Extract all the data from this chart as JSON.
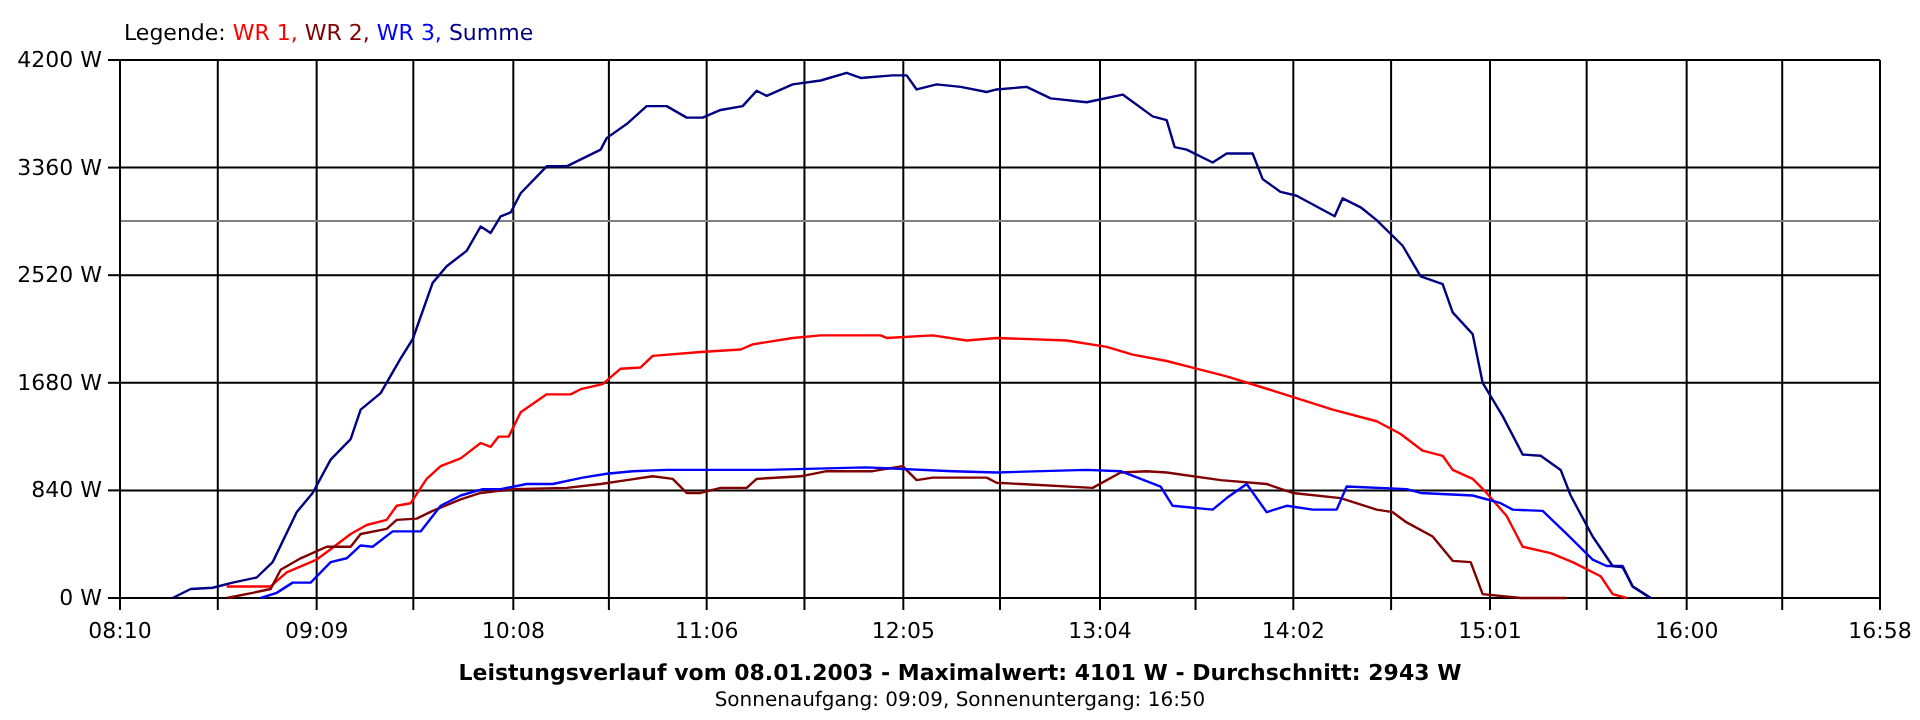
{
  "chart_data": {
    "type": "line",
    "title": "Leistungsverlauf vom 08.01.2003 - Maximalwert: 4101 W - Durchschnitt: 2943 W",
    "subtitle": "Sonnenaufgang: 09:09, Sonnenuntergang: 16:50",
    "legend_title": "Legende:",
    "legend": "top left",
    "grid": true,
    "xlim": [
      8.1667,
      16.9667
    ],
    "xticks": [
      {
        "value": 8.1667,
        "label": "08:10"
      },
      {
        "value": 8.6556,
        "label": null
      },
      {
        "value": 9.15,
        "label": "09:09"
      },
      {
        "value": 9.6333,
        "label": null
      },
      {
        "value": 10.1333,
        "label": "10:08"
      },
      {
        "value": 10.6111,
        "label": null
      },
      {
        "value": 11.1,
        "label": "11:06"
      },
      {
        "value": 11.5889,
        "label": null
      },
      {
        "value": 12.0833,
        "label": "12:05"
      },
      {
        "value": 12.5667,
        "label": null
      },
      {
        "value": 13.0667,
        "label": "13:04"
      },
      {
        "value": 13.5444,
        "label": null
      },
      {
        "value": 14.0333,
        "label": "14:02"
      },
      {
        "value": 14.5222,
        "label": null
      },
      {
        "value": 15.0167,
        "label": "15:01"
      },
      {
        "value": 15.5,
        "label": null
      },
      {
        "value": 16,
        "label": "16:00"
      },
      {
        "value": 16.4778,
        "label": null
      },
      {
        "value": 16.9667,
        "label": "16:58"
      }
    ],
    "ylim": [
      0,
      4200
    ],
    "yticks": [
      {
        "value": 0,
        "label": "0 W"
      },
      {
        "value": 840,
        "label": "840 W"
      },
      {
        "value": 1680,
        "label": "1680 W"
      },
      {
        "value": 2520,
        "label": "2520 W"
      },
      {
        "value": 3360,
        "label": "3360 W"
      },
      {
        "value": 4200,
        "label": "4200 W"
      }
    ],
    "ref_lines": [
      {
        "axis": "y",
        "value": 2943,
        "color": "#808080"
      }
    ],
    "series": [
      {
        "name": "WR 1,",
        "color": "#ff0000",
        "x": [
          8.7,
          8.92,
          9.0,
          9.15,
          9.22,
          9.32,
          9.4,
          9.5,
          9.55,
          9.62,
          9.7,
          9.77,
          9.87,
          9.97,
          10.02,
          10.06,
          10.11,
          10.17,
          10.3,
          10.42,
          10.47,
          10.58,
          10.67,
          10.77,
          10.83,
          11.07,
          11.27,
          11.33,
          11.53,
          11.67,
          11.97,
          12.0,
          12.23,
          12.4,
          12.55,
          12.9,
          13.1,
          13.23,
          13.4,
          13.5,
          13.7,
          13.97,
          14.23,
          14.45,
          14.57,
          14.68,
          14.78,
          14.83,
          14.93,
          15.0,
          15.1,
          15.18,
          15.32,
          15.43,
          15.57,
          15.63,
          15.7
        ],
        "values": [
          90,
          90,
          200,
          300,
          380,
          500,
          570,
          610,
          720,
          740,
          930,
          1030,
          1090,
          1210,
          1180,
          1260,
          1260,
          1450,
          1590,
          1590,
          1630,
          1670,
          1790,
          1800,
          1890,
          1920,
          1940,
          1980,
          2030,
          2050,
          2050,
          2030,
          2050,
          2010,
          2030,
          2010,
          1960,
          1900,
          1850,
          1810,
          1730,
          1600,
          1470,
          1380,
          1280,
          1150,
          1110,
          1000,
          930,
          820,
          640,
          400,
          350,
          280,
          170,
          30,
          0
        ]
      },
      {
        "name": "WR 2,",
        "color": "#800000",
        "x": [
          8.7,
          8.83,
          8.92,
          8.97,
          9.07,
          9.2,
          9.32,
          9.37,
          9.5,
          9.55,
          9.65,
          9.73,
          9.87,
          9.97,
          10.13,
          10.4,
          10.57,
          10.7,
          10.83,
          10.93,
          11.0,
          11.07,
          11.17,
          11.3,
          11.35,
          11.57,
          11.7,
          11.93,
          12.08,
          12.15,
          12.23,
          12.5,
          12.55,
          13.03,
          13.17,
          13.3,
          13.4,
          13.67,
          13.9,
          14.03,
          14.27,
          14.45,
          14.53,
          14.6,
          14.73,
          14.83,
          14.92,
          14.98,
          15.17,
          15.4
        ],
        "values": [
          0,
          40,
          70,
          220,
          310,
          400,
          400,
          500,
          540,
          610,
          620,
          680,
          770,
          820,
          850,
          860,
          890,
          920,
          950,
          930,
          820,
          820,
          860,
          860,
          930,
          950,
          990,
          990,
          1030,
          920,
          940,
          940,
          900,
          860,
          980,
          990,
          980,
          920,
          890,
          820,
          780,
          690,
          670,
          590,
          480,
          290,
          280,
          30,
          0,
          0
        ]
      },
      {
        "name": "WR 3,",
        "color": "#0000ff",
        "x": [
          8.87,
          8.95,
          9.03,
          9.12,
          9.22,
          9.3,
          9.37,
          9.43,
          9.53,
          9.67,
          9.77,
          9.87,
          9.98,
          10.07,
          10.2,
          10.33,
          10.48,
          10.6,
          10.73,
          10.9,
          11.4,
          11.9,
          12.33,
          12.55,
          13.0,
          13.17,
          13.37,
          13.43,
          13.63,
          13.7,
          13.8,
          13.9,
          14.0,
          14.13,
          14.25,
          14.3,
          14.6,
          14.67,
          14.93,
          15.07,
          15.13,
          15.28,
          15.4,
          15.53,
          15.6,
          15.68,
          15.73,
          15.82
        ],
        "values": [
          0,
          40,
          120,
          120,
          280,
          310,
          410,
          400,
          520,
          520,
          720,
          800,
          850,
          850,
          890,
          890,
          940,
          970,
          990,
          1000,
          1000,
          1020,
          990,
          980,
          1000,
          990,
          870,
          720,
          690,
          780,
          890,
          670,
          720,
          690,
          690,
          870,
          850,
          820,
          800,
          740,
          690,
          680,
          500,
          300,
          250,
          250,
          90,
          0
        ]
      },
      {
        "name": "Summe",
        "color": "#000080",
        "x": [
          8.43,
          8.52,
          8.63,
          8.73,
          8.85,
          8.93,
          9.05,
          9.13,
          9.22,
          9.32,
          9.37,
          9.47,
          9.57,
          9.63,
          9.73,
          9.8,
          9.9,
          9.97,
          10.02,
          10.07,
          10.12,
          10.17,
          10.3,
          10.4,
          10.57,
          10.6,
          10.7,
          10.8,
          10.9,
          11.0,
          11.08,
          11.17,
          11.28,
          11.35,
          11.4,
          11.53,
          11.67,
          11.8,
          11.87,
          12.03,
          12.1,
          12.15,
          12.25,
          12.37,
          12.5,
          12.55,
          12.7,
          12.82,
          13.0,
          13.18,
          13.33,
          13.4,
          13.44,
          13.5,
          13.63,
          13.7,
          13.83,
          13.88,
          13.97,
          14.05,
          14.24,
          14.28,
          14.37,
          14.45,
          14.58,
          14.67,
          14.78,
          14.83,
          14.93,
          14.98,
          15.08,
          15.18,
          15.27,
          15.37,
          15.42,
          15.53,
          15.63,
          15.68,
          15.73,
          15.82
        ],
        "values": [
          0,
          70,
          80,
          120,
          160,
          280,
          670,
          820,
          1080,
          1240,
          1470,
          1600,
          1870,
          2020,
          2460,
          2590,
          2710,
          2900,
          2850,
          2980,
          3010,
          3160,
          3370,
          3370,
          3500,
          3590,
          3700,
          3840,
          3840,
          3750,
          3750,
          3810,
          3840,
          3960,
          3920,
          4010,
          4040,
          4100,
          4060,
          4080,
          4080,
          3970,
          4010,
          3990,
          3950,
          3970,
          3990,
          3900,
          3870,
          3930,
          3760,
          3730,
          3520,
          3500,
          3400,
          3470,
          3470,
          3270,
          3170,
          3140,
          2980,
          3120,
          3050,
          2950,
          2750,
          2510,
          2450,
          2230,
          2060,
          1680,
          1420,
          1120,
          1110,
          1000,
          800,
          480,
          250,
          240,
          90,
          0
        ]
      }
    ]
  }
}
